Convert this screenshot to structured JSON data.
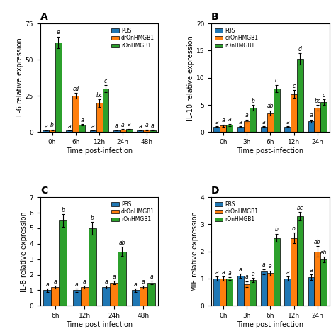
{
  "chart_data": [
    {
      "type": "bar",
      "title": "A",
      "xlabel": "Time post-infection",
      "ylabel": "IL-6 relative expression",
      "categories": [
        "0h",
        "6h",
        "12h",
        "24h",
        "48h"
      ],
      "series": [
        {
          "name": "PBS",
          "values": [
            1.0,
            1.0,
            1.0,
            1.2,
            1.0
          ],
          "errors": [
            0.1,
            0.1,
            0.1,
            0.1,
            0.1
          ],
          "letters": [
            "a",
            "a",
            "a",
            "a",
            "a"
          ]
        },
        {
          "name": "drOnHMGB1",
          "values": [
            1.5,
            25.0,
            20.0,
            1.8,
            1.5
          ],
          "errors": [
            0.2,
            2.0,
            2.5,
            0.2,
            0.2
          ],
          "letters": [
            "b",
            "cd",
            "bc",
            "a",
            "a"
          ]
        },
        {
          "name": "rOnHMGB1",
          "values": [
            62.0,
            5.0,
            30.0,
            2.0,
            1.3
          ],
          "errors": [
            4.0,
            0.5,
            2.5,
            0.2,
            0.1
          ],
          "letters": [
            "e",
            "a",
            "c",
            "a",
            "a"
          ]
        }
      ],
      "ylim": [
        0,
        75
      ],
      "yticks": [
        0,
        25,
        50,
        75
      ],
      "legend": "upper right"
    },
    {
      "type": "bar",
      "title": "B",
      "xlabel": "Time post-infection",
      "ylabel": "IL-10 relative expression",
      "categories": [
        "0h",
        "3h",
        "6h",
        "12h",
        "24h"
      ],
      "series": [
        {
          "name": "PBS",
          "values": [
            1.0,
            1.0,
            1.0,
            1.0,
            2.0
          ],
          "errors": [
            0.1,
            0.1,
            0.1,
            0.1,
            0.3
          ],
          "letters": [
            "a",
            "a",
            "a",
            "a",
            "a"
          ]
        },
        {
          "name": "drOnHMGB1",
          "values": [
            1.2,
            2.0,
            3.5,
            7.0,
            4.5
          ],
          "errors": [
            0.2,
            0.3,
            0.5,
            0.7,
            0.5
          ],
          "letters": [
            "a",
            "a",
            "ab",
            "c",
            "bc"
          ]
        },
        {
          "name": "rOnHMGB1",
          "values": [
            1.3,
            4.5,
            8.0,
            13.5,
            5.5
          ],
          "errors": [
            0.2,
            0.5,
            0.7,
            1.0,
            0.5
          ],
          "letters": [
            "a",
            "b",
            "c",
            "d",
            "c"
          ]
        }
      ],
      "ylim": [
        0,
        20
      ],
      "yticks": [
        0,
        5,
        10,
        15,
        20
      ],
      "legend": "upper left"
    },
    {
      "type": "bar",
      "title": "C",
      "xlabel": "Time post-infection",
      "ylabel": "IL-8 relative expression",
      "categories": [
        "6h",
        "12h",
        "24h",
        "48h"
      ],
      "series": [
        {
          "name": "PBS",
          "values": [
            1.0,
            1.0,
            1.2,
            1.0
          ],
          "errors": [
            0.1,
            0.1,
            0.1,
            0.1
          ],
          "letters": [
            "a",
            "a",
            "a",
            "a"
          ]
        },
        {
          "name": "drOnHMGB1",
          "values": [
            1.2,
            1.2,
            1.5,
            1.2
          ],
          "errors": [
            0.1,
            0.1,
            0.1,
            0.1
          ],
          "letters": [
            "a",
            "a",
            "a",
            "a"
          ]
        },
        {
          "name": "rOnHMGB1",
          "values": [
            5.5,
            5.0,
            3.5,
            1.5
          ],
          "errors": [
            0.4,
            0.4,
            0.3,
            0.1
          ],
          "letters": [
            "b",
            "b",
            "ab",
            "a"
          ]
        }
      ],
      "ylim": [
        0,
        7
      ],
      "yticks": [
        0,
        1,
        2,
        3,
        4,
        5,
        6,
        7
      ],
      "legend": "upper right"
    },
    {
      "type": "bar",
      "title": "D",
      "xlabel": "Time post-infection",
      "ylabel": "MIF relative expression",
      "categories": [
        "0h",
        "3h",
        "6h",
        "12h",
        "24h"
      ],
      "series": [
        {
          "name": "PBS",
          "values": [
            1.0,
            1.1,
            1.25,
            1.0,
            1.05
          ],
          "errors": [
            0.08,
            0.08,
            0.1,
            0.08,
            0.1
          ],
          "letters": [
            "a",
            "a",
            "a",
            "a",
            "a"
          ]
        },
        {
          "name": "drOnHMGB1",
          "values": [
            1.0,
            0.8,
            1.2,
            2.5,
            2.0
          ],
          "errors": [
            0.08,
            0.1,
            0.1,
            0.2,
            0.2
          ],
          "letters": [
            "a",
            "a",
            "a",
            "b",
            "ab"
          ]
        },
        {
          "name": "rOnHMGB1",
          "values": [
            1.0,
            0.95,
            2.5,
            3.3,
            1.7
          ],
          "errors": [
            0.05,
            0.08,
            0.15,
            0.15,
            0.1
          ],
          "letters": [
            "a",
            "a",
            "b",
            "bc",
            "ab"
          ]
        }
      ],
      "ylim": [
        0,
        4
      ],
      "yticks": [
        0,
        1,
        2,
        3,
        4
      ],
      "legend": "upper left"
    }
  ]
}
